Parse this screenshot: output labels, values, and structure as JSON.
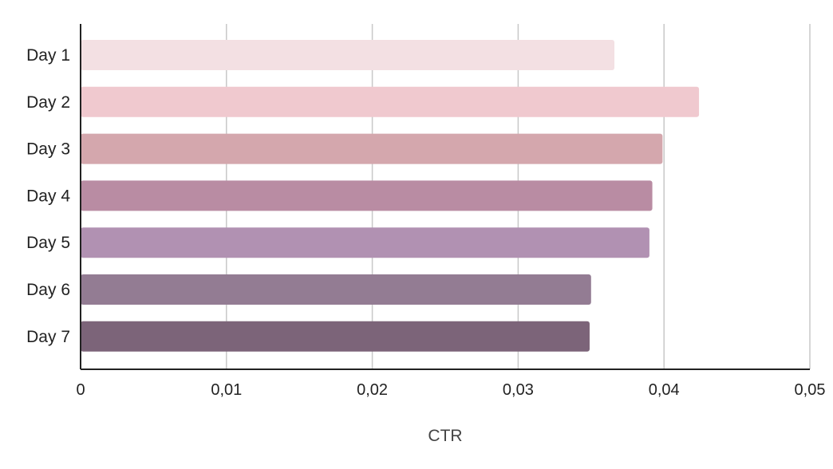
{
  "chart_data": {
    "type": "bar",
    "orientation": "horizontal",
    "categories": [
      "Day 1",
      "Day 2",
      "Day 3",
      "Day 4",
      "Day 5",
      "Day 6",
      "Day 7"
    ],
    "values": [
      0.0366,
      0.0424,
      0.0399,
      0.0392,
      0.039,
      0.035,
      0.0349
    ],
    "bar_colors": [
      "#f3e0e3",
      "#f0c9cf",
      "#d4a7ad",
      "#b98ca3",
      "#b191b2",
      "#937c93",
      "#7c6479"
    ],
    "xlabel": "CTR",
    "ylabel": "",
    "title": "",
    "xlim": [
      0,
      0.05
    ],
    "x_ticks": [
      0,
      0.01,
      0.02,
      0.03,
      0.04,
      0.05
    ],
    "x_tick_labels": [
      "0",
      "0,01",
      "0,02",
      "0,03",
      "0,04",
      "0,05"
    ],
    "grid": "vertical",
    "legend": "none"
  }
}
